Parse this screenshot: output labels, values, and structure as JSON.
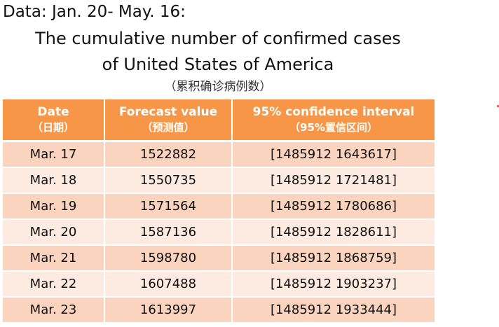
{
  "header": {
    "data_range": "Data: Jan. 20- May. 16:",
    "title_line1": "The cumulative number of confirmed cases",
    "title_line2": "of  United States of America",
    "subtitle_zh": "（累积确诊病例数）"
  },
  "table": {
    "columns": [
      {
        "en": "Date",
        "zh": "（日期）"
      },
      {
        "en": "Forecast value",
        "zh": "（预测值）"
      },
      {
        "en": "95% confidence interval",
        "zh": "（95%置信区间）"
      }
    ],
    "rows": [
      {
        "date": "Mar. 17",
        "forecast": "1522882",
        "ci": "[1485912  1643617]"
      },
      {
        "date": "Mar. 18",
        "forecast": "1550735",
        "ci": "[1485912  1721481]"
      },
      {
        "date": "Mar. 19",
        "forecast": "1571564",
        "ci": "[1485912  1780686]"
      },
      {
        "date": "Mar. 20",
        "forecast": "1587136",
        "ci": "[1485912  1828611]"
      },
      {
        "date": "Mar. 21",
        "forecast": "1598780",
        "ci": "[1485912  1868759]"
      },
      {
        "date": "Mar. 22",
        "forecast": "1607488",
        "ci": "[1485912  1903237]"
      },
      {
        "date": "Mar. 23",
        "forecast": "1613997",
        "ci": "[1485912  1933444]"
      }
    ]
  },
  "colors": {
    "header_bg": "#f79646",
    "row_dark": "#fbd4bf",
    "row_light": "#fdeae0",
    "dot": "#e53935"
  }
}
